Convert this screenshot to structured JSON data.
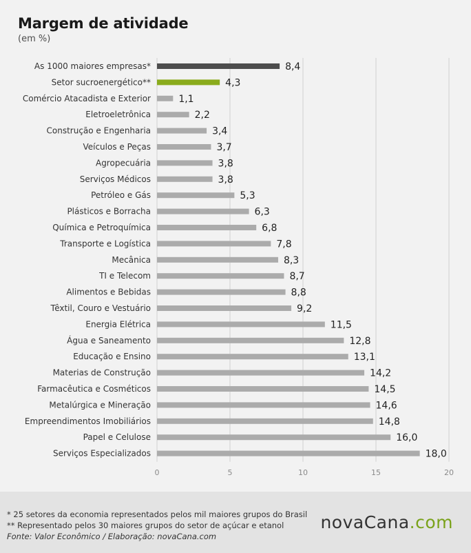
{
  "header": {
    "title": "Margem de atividade",
    "subtitle": "(em %)"
  },
  "chart_data": {
    "type": "bar",
    "orientation": "horizontal",
    "title": "Margem de atividade",
    "subtitle": "(em %)",
    "xlim": [
      0,
      20
    ],
    "xticks": [
      0,
      5,
      10,
      15,
      20
    ],
    "grid": true,
    "categories": [
      "As 1000 maiores empresas*",
      "Setor sucroenergético**",
      "Comércio Atacadista e Exterior",
      "Eletroeletrônica",
      "Construção e Engenharia",
      "Veículos e Peças",
      "Agropecuária",
      "Serviços Médicos",
      "Petróleo e Gás",
      "Plásticos e Borracha",
      "Química e Petroquímica",
      "Transporte e Logística",
      "Mecânica",
      "TI e Telecom",
      "Alimentos e Bebidas",
      "Têxtil, Couro e Vestuário",
      "Energia Elétrica",
      "Água e Saneamento",
      "Educação e Ensino",
      "Materias de Construção",
      "Farmacêutica e Cosméticos",
      "Metalúrgica e Mineração",
      "Empreendimentos Imobiliários",
      "Papel e Celulose",
      "Serviços Especializados"
    ],
    "values": [
      8.4,
      4.3,
      1.1,
      2.2,
      3.4,
      3.7,
      3.8,
      3.8,
      5.3,
      6.3,
      6.8,
      7.8,
      8.3,
      8.7,
      8.8,
      9.2,
      11.5,
      12.8,
      13.1,
      14.2,
      14.5,
      14.6,
      14.8,
      16.0,
      18.0
    ],
    "value_labels": [
      "8,4",
      "4,3",
      "1,1",
      "2,2",
      "3,4",
      "3,7",
      "3,8",
      "3,8",
      "5,3",
      "6,3",
      "6,8",
      "7,8",
      "8,3",
      "8,7",
      "8,8",
      "9,2",
      "11,5",
      "12,8",
      "13,1",
      "14,2",
      "14,5",
      "14,6",
      "14,8",
      "16,0",
      "18,0"
    ],
    "colors": {
      "highlight_total": "#4d4d4d",
      "highlight_sector": "#8aab1c",
      "default": "#ababab",
      "grid": "#d0d0d0"
    },
    "bar_color_keys": [
      "highlight_total",
      "highlight_sector",
      "default",
      "default",
      "default",
      "default",
      "default",
      "default",
      "default",
      "default",
      "default",
      "default",
      "default",
      "default",
      "default",
      "default",
      "default",
      "default",
      "default",
      "default",
      "default",
      "default",
      "default",
      "default",
      "default"
    ]
  },
  "footer": {
    "note1": "* 25 setores da economia representados pelos mil maiores grupos do Brasil",
    "note2": "** Representado pelos 30 maiores grupos do setor de açúcar e etanol",
    "source": "Fonte: Valor Econômico / Elaboração: novaCana.com",
    "logo_main": "novaCana",
    "logo_accent": ".com"
  }
}
